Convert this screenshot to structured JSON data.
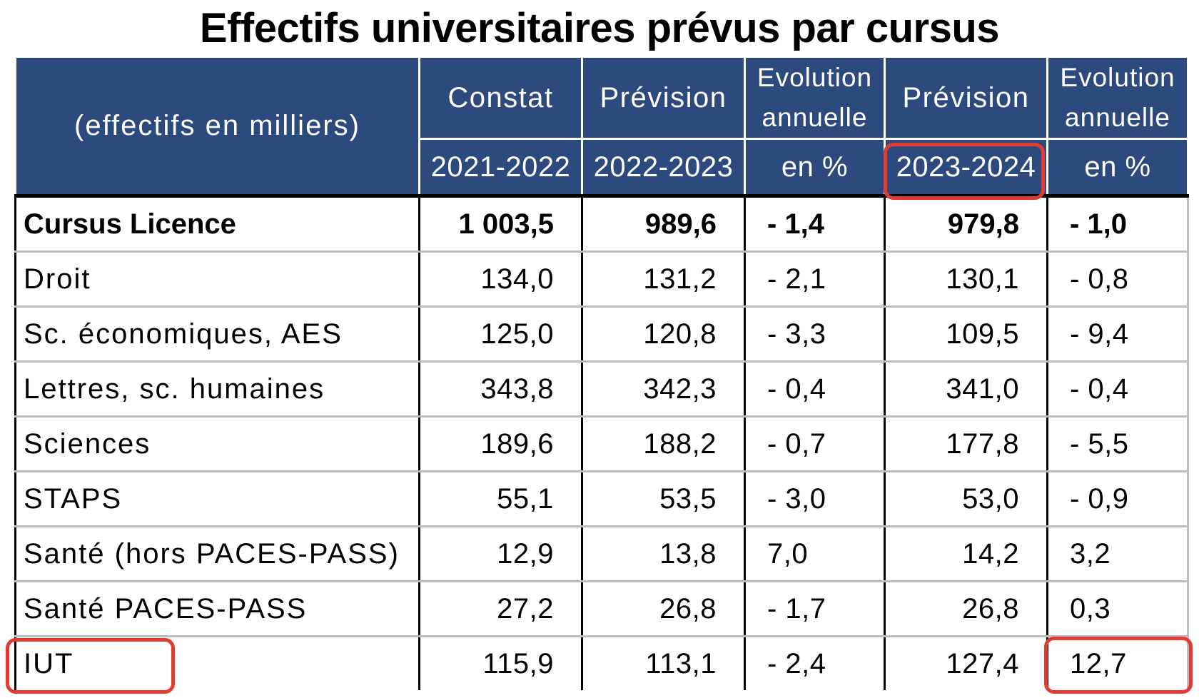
{
  "title": "Effectifs universitaires prévus par cursus",
  "header": {
    "unit_label": "(effectifs en milliers)",
    "columns": [
      {
        "top": "Constat",
        "bottom": "2021-2022"
      },
      {
        "top": "Prévision",
        "bottom": "2022-2023"
      },
      {
        "top_line1": "Evolution",
        "top_line2": "annuelle",
        "bottom": "en %"
      },
      {
        "top": "Prévision",
        "bottom": "2023-2024"
      },
      {
        "top_line1": "Evolution",
        "top_line2": "annuelle",
        "bottom": "en %"
      }
    ]
  },
  "rows": [
    {
      "label": "Cursus Licence",
      "v2122": "1 003,5",
      "v2223": "989,6",
      "evo1": "- 1,4",
      "v2324": "979,8",
      "evo2": "- 1,0"
    },
    {
      "label": "Droit",
      "v2122": "134,0",
      "v2223": "131,2",
      "evo1": "- 2,1",
      "v2324": "130,1",
      "evo2": "- 0,8"
    },
    {
      "label": "Sc. économiques, AES",
      "v2122": "125,0",
      "v2223": "120,8",
      "evo1": "- 3,3",
      "v2324": "109,5",
      "evo2": "- 9,4"
    },
    {
      "label": "Lettres, sc. humaines",
      "v2122": "343,8",
      "v2223": "342,3",
      "evo1": "- 0,4",
      "v2324": "341,0",
      "evo2": "- 0,4"
    },
    {
      "label": "Sciences",
      "v2122": "189,6",
      "v2223": "188,2",
      "evo1": "- 0,7",
      "v2324": "177,8",
      "evo2": "- 5,5"
    },
    {
      "label": "STAPS",
      "v2122": "55,1",
      "v2223": "53,5",
      "evo1": "- 3,0",
      "v2324": "53,0",
      "evo2": "- 0,9"
    },
    {
      "label": "Santé (hors PACES-PASS)",
      "v2122": "12,9",
      "v2223": "13,8",
      "evo1": "7,0",
      "v2324": "14,2",
      "evo2": "3,2"
    },
    {
      "label": "Santé PACES-PASS",
      "v2122": "27,2",
      "v2223": "26,8",
      "evo1": "- 1,7",
      "v2324": "26,8",
      "evo2": "0,3"
    },
    {
      "label": "IUT",
      "v2122": "115,9",
      "v2223": "113,1",
      "evo1": "- 2,4",
      "v2324": "127,4",
      "evo2": "12,7"
    }
  ],
  "colors": {
    "header_bg": "#2c4a7e",
    "highlight": "#e23b2f"
  }
}
